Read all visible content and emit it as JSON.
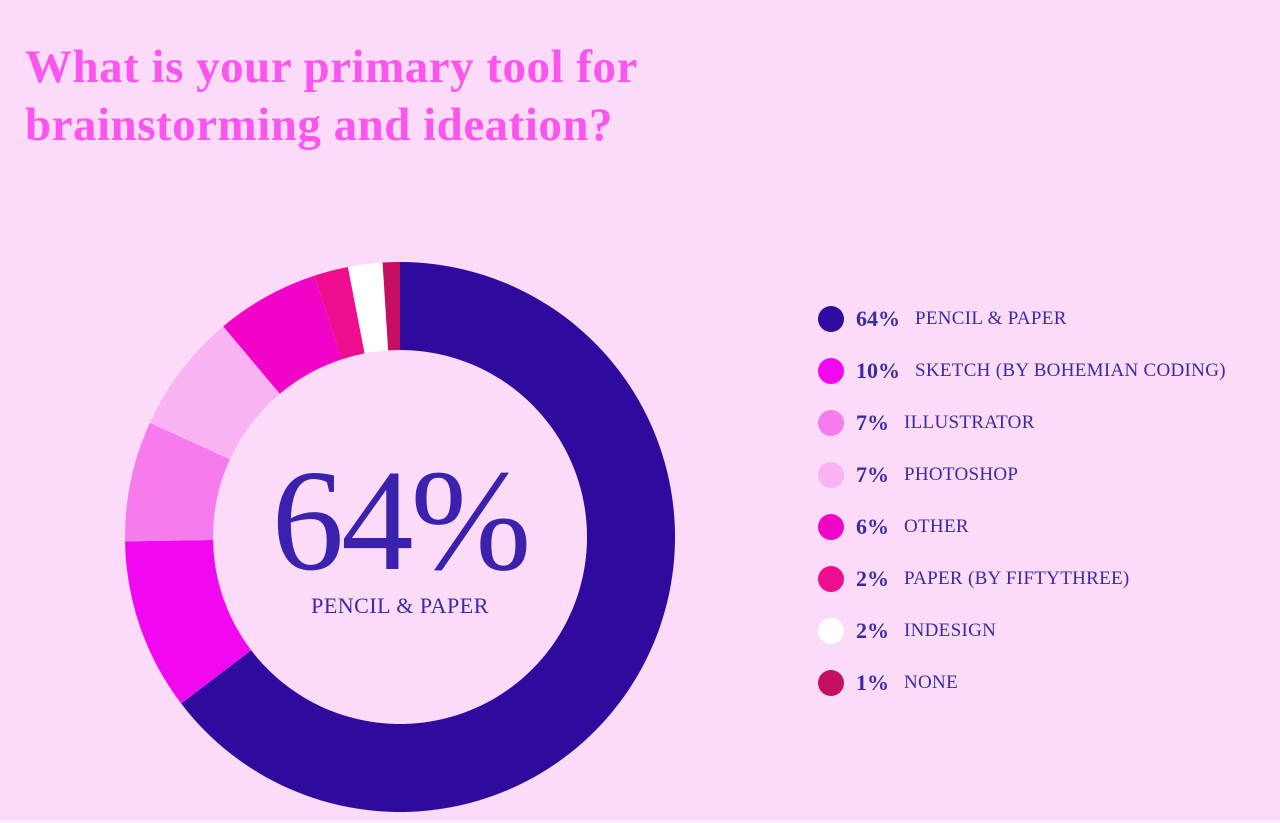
{
  "title": "What is your primary tool for brainstorming and ideation?",
  "colors": {
    "background": "#fbdbf8",
    "title_pink": "#fb55f0",
    "text_indigo": "#3b2aa4",
    "center_value_indigo": "#3b22ae"
  },
  "chart_data": {
    "type": "donut",
    "title": "What is your primary tool for brainstorming and ideation?",
    "categories": [
      "PENCIL & PAPER",
      "SKETCH (BY BOHEMIAN CODING)",
      "ILLUSTRATOR",
      "PHOTOSHOP",
      "OTHER",
      "PAPER (BY FIFTYTHREE)",
      "INDESIGN",
      "NONE"
    ],
    "values": [
      64,
      10,
      7,
      7,
      6,
      2,
      2,
      1
    ],
    "units": "%",
    "colors": [
      "#2e0a9e",
      "#f108f1",
      "#f67cee",
      "#f9b2f2",
      "#f203c8",
      "#ee0d8f",
      "#ffffff",
      "#c40f63"
    ],
    "start_angle_deg": 0,
    "direction": "clockwise",
    "legend_position": "right",
    "center": {
      "value": "64%",
      "label": "PENCIL & PAPER"
    }
  },
  "legend": {
    "items": [
      {
        "pct": "64%",
        "label": "PENCIL & PAPER",
        "color": "#2e0a9e"
      },
      {
        "pct": "10%",
        "label": "SKETCH (BY BOHEMIAN CODING)",
        "color": "#f108f1"
      },
      {
        "pct": "7%",
        "label": "ILLUSTRATOR",
        "color": "#f67cee"
      },
      {
        "pct": "7%",
        "label": "PHOTOSHOP",
        "color": "#f9b2f2"
      },
      {
        "pct": "6%",
        "label": "OTHER",
        "color": "#f203c8"
      },
      {
        "pct": "2%",
        "label": "PAPER (BY FIFTYTHREE)",
        "color": "#ee0d8f"
      },
      {
        "pct": "2%",
        "label": "INDESIGN",
        "color": "#ffffff"
      },
      {
        "pct": "1%",
        "label": "NONE",
        "color": "#c40f63"
      }
    ]
  }
}
